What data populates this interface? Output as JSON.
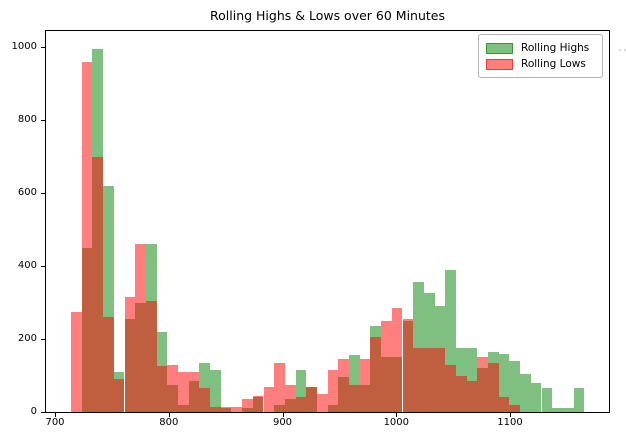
{
  "figure": {
    "title": "Rolling Highs & Lows over 60 Minutes"
  },
  "legend": {
    "items": [
      {
        "label": "Rolling Highs",
        "fill": "rgba(0,128,0,0.5)",
        "edge": "rgba(0,100,0,0.5)"
      },
      {
        "label": "Rolling Lows",
        "fill": "rgba(255,0,0,0.5)",
        "edge": "rgba(200,0,0,0.5)"
      }
    ]
  },
  "edge_artifact_text": "' '",
  "chart_data": {
    "type": "histogram",
    "title": "Rolling Highs & Lows over 60 Minutes",
    "xlabel": "",
    "ylabel": "",
    "legend_position": "upper right",
    "grid": false,
    "xlim": [
      691,
      1190
    ],
    "ylim": [
      0,
      1044
    ],
    "xticks": [
      700,
      800,
      900,
      1000,
      1100
    ],
    "yticks": [
      0,
      200,
      400,
      600,
      800,
      1000
    ],
    "bin_start": 713.2,
    "bin_width": 9.4,
    "bin_count": 48,
    "series": [
      {
        "name": "Rolling Highs",
        "color_name": "green",
        "fill": "rgba(0,128,0,0.5)",
        "values": [
          0,
          450,
          995,
          620,
          110,
          255,
          300,
          460,
          220,
          75,
          20,
          85,
          135,
          115,
          15,
          0,
          10,
          40,
          0,
          20,
          35,
          115,
          70,
          0,
          20,
          95,
          155,
          75,
          235,
          150,
          150,
          250,
          355,
          325,
          290,
          390,
          175,
          175,
          120,
          165,
          160,
          140,
          105,
          80,
          65,
          10,
          10,
          65
        ]
      },
      {
        "name": "Rolling Lows",
        "color_name": "red",
        "fill": "rgba(255,0,0,0.5)",
        "values": [
          275,
          960,
          700,
          260,
          90,
          315,
          460,
          305,
          125,
          130,
          110,
          110,
          65,
          15,
          10,
          15,
          35,
          45,
          70,
          135,
          75,
          40,
          70,
          50,
          115,
          145,
          75,
          145,
          205,
          250,
          285,
          255,
          175,
          175,
          175,
          130,
          100,
          85,
          150,
          135,
          40,
          20,
          0,
          0,
          0,
          0,
          0,
          0
        ]
      }
    ]
  }
}
